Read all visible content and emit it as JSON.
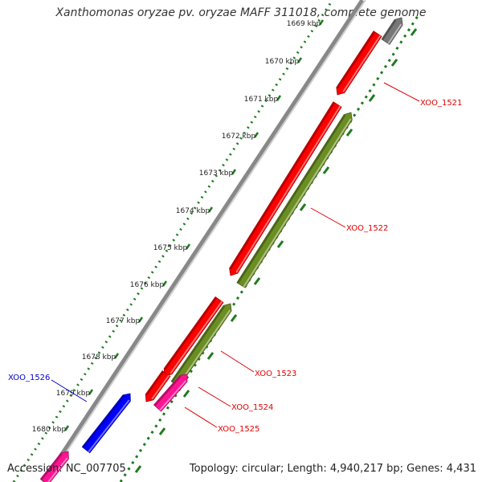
{
  "title": "Xanthomonas oryzae pv. oryzae MAFF 311018, complete genome",
  "accession": "Accession: NC_007705",
  "topology": "Topology: circular; Length: 4,940,217 bp; Genes: 4,431",
  "colors": {
    "background": "#ffffff",
    "backbone": "#8a8a8a",
    "ticks": "#1e7a1e",
    "gene_red": "#ff0000",
    "gene_olive": "#6b8e23",
    "gene_blue": "#0000ff",
    "gene_magenta": "#ff1493",
    "gene_gray": "#777777",
    "label_red": "#e00000",
    "label_blue": "#0000cc"
  },
  "ticks": [
    {
      "label": "1669 kbp"
    },
    {
      "label": "1670 kbp"
    },
    {
      "label": "1671 kbp"
    },
    {
      "label": "1672 kbp"
    },
    {
      "label": "1673 kbp"
    },
    {
      "label": "1674 kbp"
    },
    {
      "label": "1675 kbp"
    },
    {
      "label": "1676 kbp"
    },
    {
      "label": "1677 kbp"
    },
    {
      "label": "1678 kbp"
    },
    {
      "label": "1679 kbp"
    },
    {
      "label": "1680 kbp"
    }
  ],
  "genes": [
    {
      "id": "XOO_1521",
      "label": "XOO_1521",
      "color": "gene_red",
      "strand": "-",
      "labeled": true
    },
    {
      "id": "XOO_1522",
      "label": "XOO_1522",
      "color": "gene_red",
      "strand": "-",
      "labeled": true
    },
    {
      "id": "XOO_1522-olive",
      "label": "",
      "color": "gene_olive",
      "strand": "+",
      "labeled": false
    },
    {
      "id": "XOO_1523",
      "label": "XOO_1523",
      "color": "gene_red",
      "strand": "-",
      "labeled": true
    },
    {
      "id": "XOO_1523-olive",
      "label": "",
      "color": "gene_olive",
      "strand": "+",
      "labeled": false
    },
    {
      "id": "XOO_1524",
      "label": "XOO_1524",
      "color": "gene_red",
      "strand": "-",
      "labeled": true
    },
    {
      "id": "XOO_1525",
      "label": "XOO_1525",
      "color": "gene_magenta",
      "strand": "+",
      "labeled": true
    },
    {
      "id": "XOO_1526",
      "label": "XOO_1526",
      "color": "gene_blue",
      "strand": "+",
      "labeled": true
    },
    {
      "id": "gene-gray",
      "label": "",
      "color": "gene_gray",
      "strand": "+",
      "labeled": false
    },
    {
      "id": "gene-pink",
      "label": "",
      "color": "gene_magenta",
      "strand": "+",
      "labeled": false
    }
  ]
}
